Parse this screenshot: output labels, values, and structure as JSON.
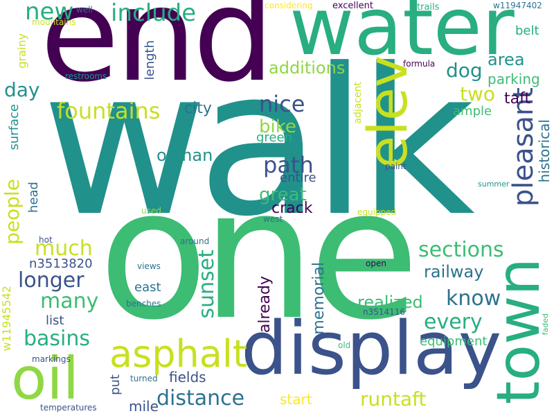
{
  "palette": {
    "dark_purple": "#440154",
    "indigo": "#3b528b",
    "teal_blue": "#2c728e",
    "teal": "#21918c",
    "sea_green": "#28ae80",
    "green": "#3dbc74",
    "lime": "#8fd744",
    "yellow_green": "#c8e020",
    "yellow": "#fde725"
  },
  "words": [
    {
      "text": "walk"
    },
    {
      "text": "one"
    },
    {
      "text": "end"
    },
    {
      "text": "water"
    },
    {
      "text": "display"
    },
    {
      "text": "elev"
    },
    {
      "text": "town"
    },
    {
      "text": "oil"
    },
    {
      "text": "asphalt"
    },
    {
      "text": "pleasant"
    },
    {
      "text": "fountains"
    },
    {
      "text": "include"
    },
    {
      "text": "new"
    },
    {
      "text": "nice"
    },
    {
      "text": "path"
    },
    {
      "text": "sections"
    },
    {
      "text": "distance"
    },
    {
      "text": "basins"
    },
    {
      "text": "longer"
    },
    {
      "text": "much"
    },
    {
      "text": "many"
    },
    {
      "text": "know"
    },
    {
      "text": "every"
    },
    {
      "text": "sunset"
    },
    {
      "text": "people"
    },
    {
      "text": "runtaft"
    },
    {
      "text": "railway"
    },
    {
      "text": "realized"
    },
    {
      "text": "oilman"
    },
    {
      "text": "bike"
    },
    {
      "text": "great"
    },
    {
      "text": "two"
    },
    {
      "text": "dog"
    },
    {
      "text": "day"
    },
    {
      "text": "area"
    },
    {
      "text": "additions"
    },
    {
      "text": "city"
    },
    {
      "text": "taft"
    },
    {
      "text": "parking"
    },
    {
      "text": "historical"
    },
    {
      "text": "memorial"
    },
    {
      "text": "already"
    },
    {
      "text": "crack"
    },
    {
      "text": "fields"
    },
    {
      "text": "start"
    },
    {
      "text": "mile"
    },
    {
      "text": "east"
    },
    {
      "text": "list"
    },
    {
      "text": "equipment"
    },
    {
      "text": "ample"
    },
    {
      "text": "belt"
    },
    {
      "text": "length"
    },
    {
      "text": "surface"
    },
    {
      "text": "grainy"
    },
    {
      "text": "head"
    },
    {
      "text": "green"
    },
    {
      "text": "entire"
    },
    {
      "text": "n3513820"
    },
    {
      "text": "put"
    },
    {
      "text": "adjacent"
    },
    {
      "text": "w11945542"
    },
    {
      "text": "w11947402"
    },
    {
      "text": "excellent"
    },
    {
      "text": "considering"
    },
    {
      "text": "trails"
    },
    {
      "text": "well"
    },
    {
      "text": "mountains"
    },
    {
      "text": "restrooms"
    },
    {
      "text": "formula"
    },
    {
      "text": "paint"
    },
    {
      "text": "summer"
    },
    {
      "text": "used"
    },
    {
      "text": "equipped"
    },
    {
      "text": "west"
    },
    {
      "text": "hot"
    },
    {
      "text": "around"
    },
    {
      "text": "views"
    },
    {
      "text": "benches"
    },
    {
      "text": "open"
    },
    {
      "text": "n3514116"
    },
    {
      "text": "old"
    },
    {
      "text": "markings"
    },
    {
      "text": "turned"
    },
    {
      "text": "temperatures"
    },
    {
      "text": "faded"
    }
  ]
}
